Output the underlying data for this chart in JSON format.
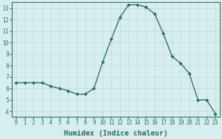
{
  "x": [
    0,
    1,
    2,
    3,
    4,
    5,
    6,
    7,
    8,
    9,
    10,
    11,
    12,
    13,
    14,
    15,
    16,
    17,
    18,
    19,
    20,
    21,
    22,
    23
  ],
  "y": [
    6.5,
    6.5,
    6.5,
    6.5,
    6.2,
    6.0,
    5.8,
    5.5,
    5.5,
    6.0,
    8.3,
    10.3,
    12.2,
    13.3,
    13.3,
    13.1,
    12.5,
    10.8,
    8.8,
    8.2,
    7.3,
    5.0,
    5.0,
    3.8
  ],
  "line_color": "#2d6b5e",
  "marker": "D",
  "marker_size": 2.2,
  "bg_color": "#d6eeee",
  "grid_color": "#c0d4d4",
  "xlabel": "Humidex (Indice chaleur)",
  "xlim": [
    -0.5,
    23.5
  ],
  "ylim": [
    3.5,
    13.5
  ],
  "yticks": [
    4,
    5,
    6,
    7,
    8,
    9,
    10,
    11,
    12,
    13
  ],
  "xticks": [
    0,
    1,
    2,
    3,
    4,
    5,
    6,
    7,
    8,
    9,
    10,
    11,
    12,
    13,
    14,
    15,
    16,
    17,
    18,
    19,
    20,
    21,
    22,
    23
  ],
  "tick_fontsize": 5.5,
  "xlabel_fontsize": 7.5,
  "tick_color": "#2d6b5e",
  "spine_color": "#2d6b5e",
  "linewidth": 1.0
}
